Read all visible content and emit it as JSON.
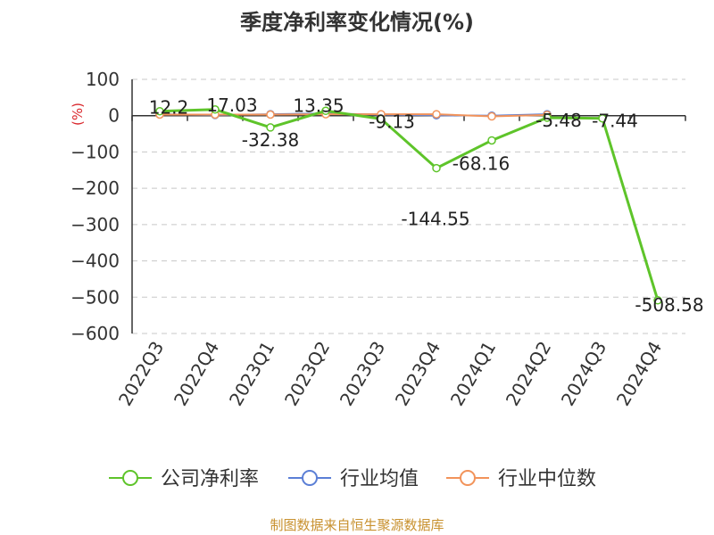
{
  "chart_data": {
    "type": "line",
    "title": "季度净利率变化情况(%)",
    "ylabel": "(%)",
    "categories": [
      "2022Q3",
      "2022Q4",
      "2023Q1",
      "2023Q2",
      "2023Q3",
      "2023Q4",
      "2024Q1",
      "2024Q2",
      "2024Q3",
      "2024Q4"
    ],
    "ylim": [
      -600,
      100
    ],
    "yticks": [
      100,
      0,
      -100,
      -200,
      -300,
      -400,
      -500,
      -600
    ],
    "grid": true,
    "legend_position": "bottom",
    "series": [
      {
        "name": "公司净利率",
        "color": "#5ec42a",
        "values": [
          12.2,
          17.03,
          -32.38,
          13.35,
          -9.13,
          -144.55,
          -68.16,
          -5.48,
          -7.44,
          -508.58
        ],
        "labels": [
          "12.2",
          "17.03",
          "-32.38",
          "13.35",
          "-9.13",
          "-144.55",
          "-68.16",
          "-5.48",
          "-7.44",
          "-508.58"
        ]
      },
      {
        "name": "行业均值",
        "color": "#5b7fd6",
        "values": [
          4,
          2,
          4,
          6,
          3,
          1,
          0,
          4,
          null,
          null
        ]
      },
      {
        "name": "行业中位数",
        "color": "#f2935a",
        "values": [
          3,
          3,
          3,
          4,
          4,
          4,
          -2,
          2,
          null,
          null
        ]
      }
    ]
  },
  "source": "制图数据来自恒生聚源数据库"
}
